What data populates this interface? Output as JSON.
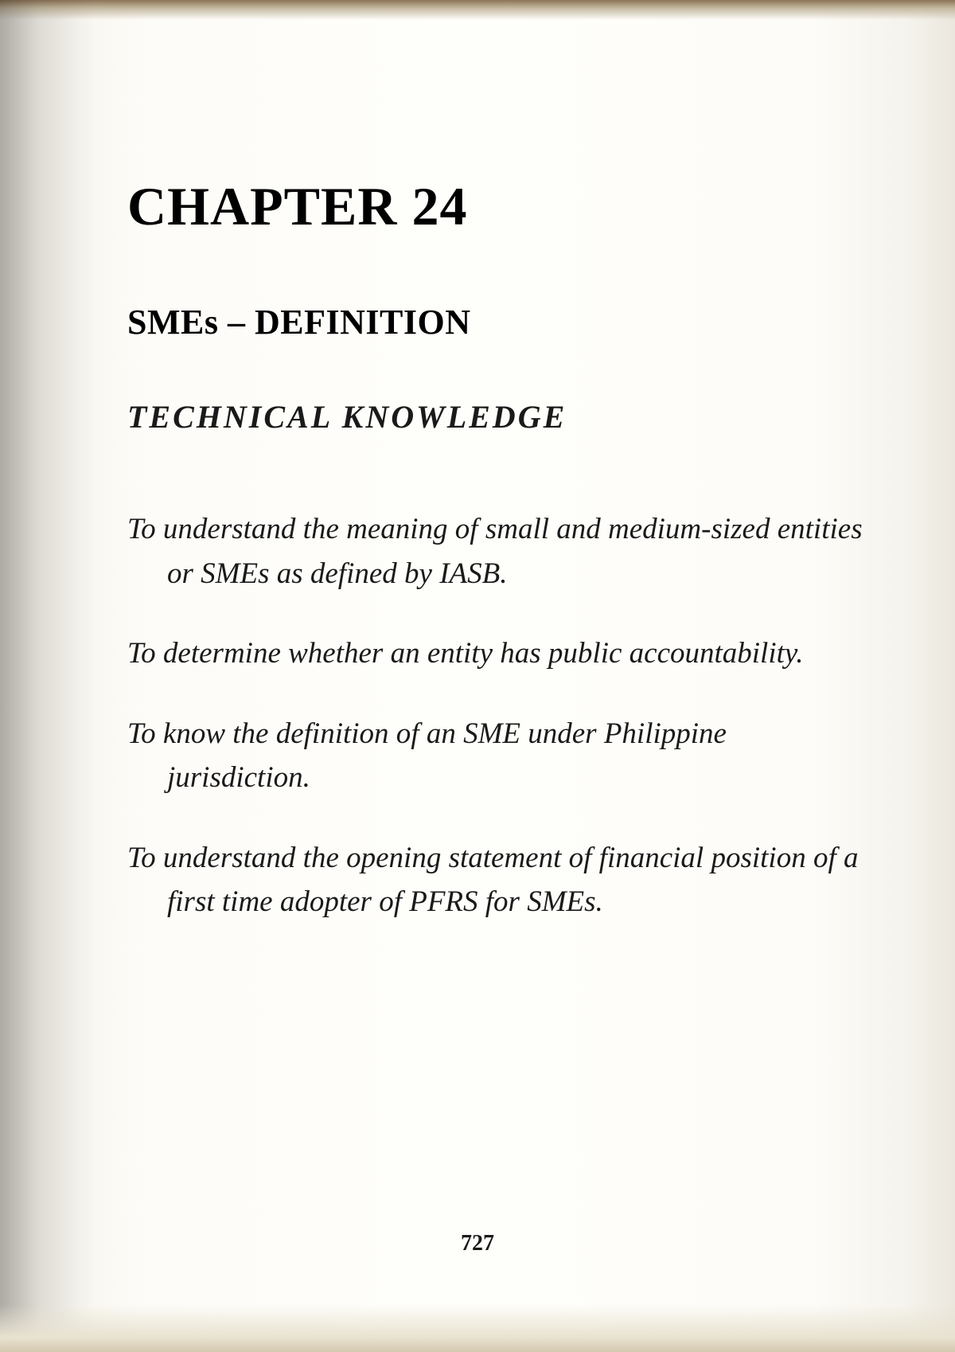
{
  "chapter": {
    "title": "CHAPTER 24",
    "subtitle": "SMEs – DEFINITION"
  },
  "section": {
    "heading": "TECHNICAL  KNOWLEDGE"
  },
  "objectives": [
    "To understand the meaning of small and medium-sized entities or SMEs as defined by IASB.",
    "To determine whether an entity has public accountability.",
    "To know the definition of an SME under Philippine jurisdiction.",
    "To understand the opening statement of financial position of a first time adopter of PFRS for SMEs."
  ],
  "page_number": "727",
  "styling": {
    "background_color": "#fdfcf8",
    "text_color": "#1a1a1a",
    "title_fontsize": 68,
    "subtitle_fontsize": 44,
    "heading_fontsize": 40,
    "body_fontsize": 37,
    "page_number_fontsize": 28,
    "font_family": "Georgia, serif"
  }
}
